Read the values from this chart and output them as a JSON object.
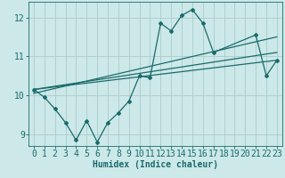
{
  "title": "",
  "xlabel": "Humidex (Indice chaleur)",
  "xlim": [
    -0.5,
    23.5
  ],
  "ylim": [
    8.7,
    12.4
  ],
  "yticks": [
    9,
    10,
    11,
    12
  ],
  "xticks": [
    0,
    1,
    2,
    3,
    4,
    5,
    6,
    7,
    8,
    9,
    10,
    11,
    12,
    13,
    14,
    15,
    16,
    17,
    18,
    19,
    20,
    21,
    22,
    23
  ],
  "bg_color": "#cce8e8",
  "grid_color": "#aacccc",
  "line_color": "#1a6b6b",
  "zigzag": {
    "x": [
      0,
      1,
      2,
      3,
      4,
      5,
      6,
      7,
      8,
      9,
      10,
      11,
      12,
      13,
      14,
      15,
      16,
      17,
      21,
      22,
      23
    ],
    "y": [
      10.15,
      9.95,
      9.65,
      9.3,
      8.85,
      9.35,
      8.8,
      9.3,
      9.55,
      9.85,
      10.5,
      10.45,
      11.85,
      11.65,
      12.05,
      12.2,
      11.85,
      11.1,
      11.55,
      10.5,
      10.9
    ]
  },
  "straight_lines": [
    {
      "x": [
        0,
        23
      ],
      "y": [
        10.15,
        10.9
      ]
    },
    {
      "x": [
        0,
        23
      ],
      "y": [
        10.05,
        11.5
      ]
    },
    {
      "x": [
        0,
        23
      ],
      "y": [
        10.15,
        11.1
      ]
    }
  ],
  "font_size_xlabel": 7,
  "font_size_ticks": 7,
  "line_width": 0.9,
  "marker_size": 2.0
}
